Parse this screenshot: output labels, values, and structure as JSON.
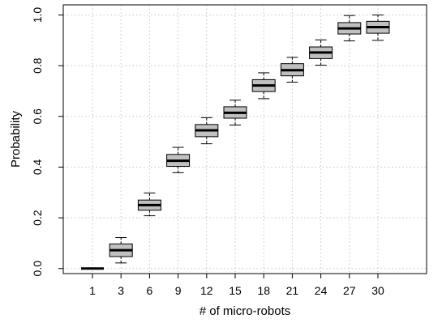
{
  "chart_data": {
    "type": "boxplot",
    "title": "",
    "xlabel": "# of micro-robots",
    "ylabel": "Probability",
    "categories": [
      "1",
      "3",
      "6",
      "9",
      "12",
      "15",
      "18",
      "21",
      "24",
      "27",
      "30"
    ],
    "ylim": [
      -0.02,
      1.04
    ],
    "yticks": [
      "0.0",
      "0.2",
      "0.4",
      "0.6",
      "0.8",
      "1.0"
    ],
    "grid": true,
    "box_fill": "#c0c0c0",
    "boxes": [
      {
        "category": "1",
        "min": 0.0,
        "q1": 0.0,
        "median": 0.0,
        "q3": 0.0,
        "max": 0.0
      },
      {
        "category": "3",
        "min": 0.022,
        "q1": 0.047,
        "median": 0.072,
        "q3": 0.097,
        "max": 0.122
      },
      {
        "category": "6",
        "min": 0.208,
        "q1": 0.23,
        "median": 0.25,
        "q3": 0.27,
        "max": 0.298
      },
      {
        "category": "9",
        "min": 0.378,
        "q1": 0.403,
        "median": 0.425,
        "q3": 0.45,
        "max": 0.478
      },
      {
        "category": "12",
        "min": 0.492,
        "q1": 0.52,
        "median": 0.545,
        "q3": 0.568,
        "max": 0.595
      },
      {
        "category": "15",
        "min": 0.566,
        "q1": 0.593,
        "median": 0.614,
        "q3": 0.638,
        "max": 0.664
      },
      {
        "category": "18",
        "min": 0.67,
        "q1": 0.698,
        "median": 0.722,
        "q3": 0.745,
        "max": 0.772
      },
      {
        "category": "21",
        "min": 0.735,
        "q1": 0.76,
        "median": 0.782,
        "q3": 0.808,
        "max": 0.833
      },
      {
        "category": "24",
        "min": 0.802,
        "q1": 0.828,
        "median": 0.852,
        "q3": 0.874,
        "max": 0.902
      },
      {
        "category": "27",
        "min": 0.898,
        "q1": 0.925,
        "median": 0.947,
        "q3": 0.97,
        "max": 0.998
      },
      {
        "category": "30",
        "min": 0.9,
        "q1": 0.928,
        "median": 0.952,
        "q3": 0.975,
        "max": 1.0
      }
    ]
  }
}
